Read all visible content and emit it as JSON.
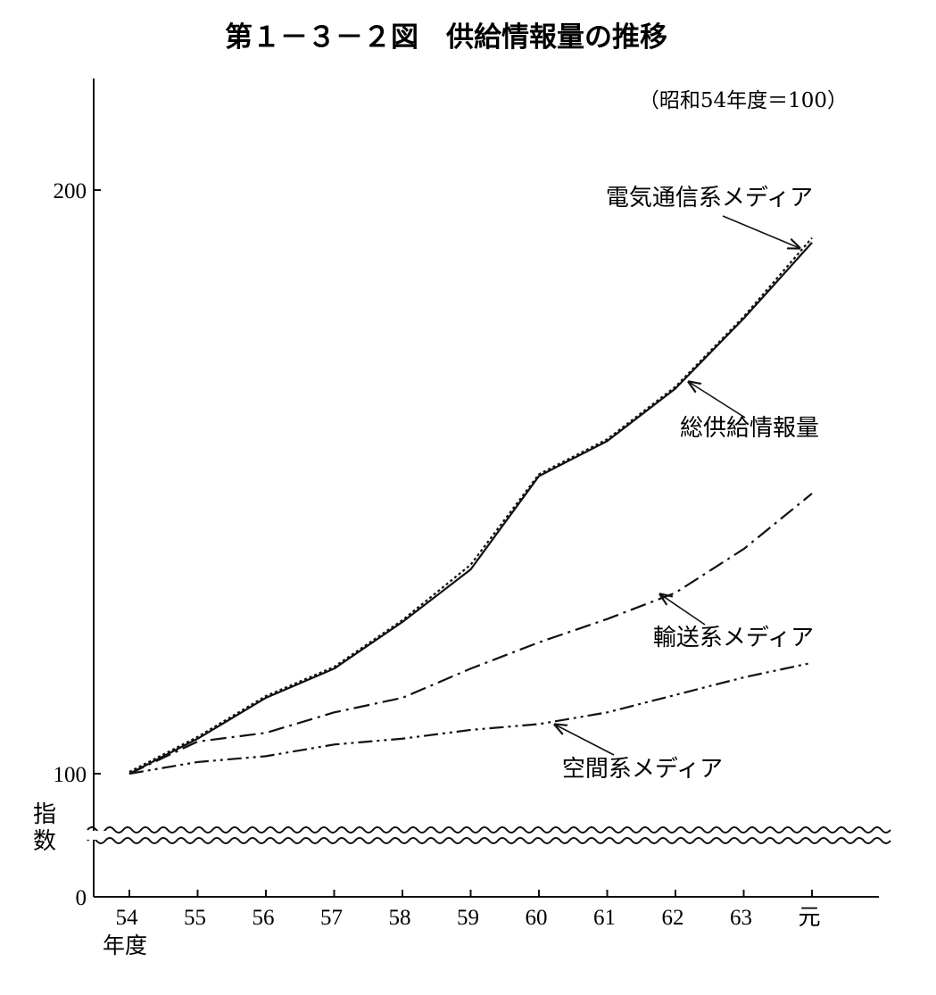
{
  "chart_data": {
    "type": "line",
    "title": "第１－３－２図　供給情報量の推移",
    "note": "（昭和54年度＝100）",
    "ylabel": "指数",
    "xlabel": "年度",
    "categories": [
      "54",
      "55",
      "56",
      "57",
      "58",
      "59",
      "60",
      "61",
      "62",
      "63",
      "元"
    ],
    "ylim": [
      0,
      200
    ],
    "yticks": [
      0,
      100,
      200
    ],
    "axis_break": true,
    "grid": false,
    "legend": "inline labels with arrows",
    "series": [
      {
        "name": "総供給情報量",
        "style": "solid",
        "values": [
          100,
          106,
          113,
          118,
          126,
          135,
          151,
          157,
          166,
          178,
          191
        ]
      },
      {
        "name": "電気通信系メディア",
        "style": "dotted",
        "values": [
          100,
          106,
          113,
          118,
          126,
          135.5,
          151,
          157,
          166,
          178,
          191.5
        ]
      },
      {
        "name": "輸送系メディア",
        "style": "dashdot",
        "values": [
          100,
          105.5,
          107,
          110.5,
          113,
          118,
          122.5,
          126.5,
          131,
          138.5,
          148
        ]
      },
      {
        "name": "空間系メディア",
        "style": "dashdotdot",
        "values": [
          100,
          102,
          103,
          105,
          106,
          107.5,
          108.5,
          110.5,
          113.5,
          116.5,
          119
        ]
      }
    ]
  }
}
